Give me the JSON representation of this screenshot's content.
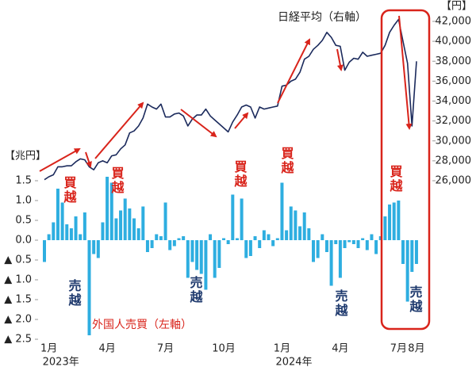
{
  "chart_data": {
    "type": "bar",
    "y_unit": "【兆円】",
    "y2_unit": "【円】",
    "categories": [
      null,
      "1月",
      null,
      null,
      null,
      null,
      null,
      null,
      null,
      null,
      null,
      null,
      null,
      null,
      "4月",
      null,
      null,
      null,
      null,
      null,
      null,
      null,
      null,
      null,
      null,
      null,
      null,
      "7月",
      null,
      null,
      null,
      null,
      null,
      null,
      null,
      null,
      null,
      null,
      null,
      null,
      "10月",
      null,
      null,
      null,
      null,
      null,
      null,
      null,
      null,
      null,
      null,
      null,
      null,
      "1月",
      null,
      null,
      null,
      null,
      null,
      null,
      null,
      null,
      null,
      null,
      null,
      null,
      "4月",
      null,
      null,
      null,
      null,
      null,
      null,
      null,
      null,
      null,
      null,
      null,
      null,
      "7月",
      null,
      null,
      null,
      "8月"
    ],
    "category_years": [
      null,
      "2023年",
      null,
      null,
      null,
      null,
      null,
      null,
      null,
      null,
      null,
      null,
      null,
      null,
      null,
      null,
      null,
      null,
      null,
      null,
      null,
      null,
      null,
      null,
      null,
      null,
      null,
      null,
      null,
      null,
      null,
      null,
      null,
      null,
      null,
      null,
      null,
      null,
      null,
      null,
      null,
      null,
      null,
      null,
      null,
      null,
      null,
      null,
      null,
      null,
      null,
      null,
      null,
      "2024年",
      null,
      null,
      null,
      null,
      null,
      null,
      null,
      null,
      null,
      null,
      null,
      null,
      null,
      null,
      null,
      null,
      null,
      null,
      null,
      null,
      null,
      null,
      null,
      null,
      null,
      null,
      null,
      null,
      null,
      null
    ],
    "series": [
      {
        "name": "外国人売買（左軸）",
        "type": "bar",
        "color": "#2eaee0",
        "values": [
          -0.55,
          0.15,
          0.45,
          1.3,
          0.95,
          0.4,
          0.3,
          0.6,
          0.15,
          0.7,
          -2.4,
          -0.35,
          -0.45,
          0.45,
          1.6,
          1.45,
          0.55,
          0.75,
          1.05,
          0.8,
          0.55,
          0.3,
          0.85,
          -0.3,
          -0.2,
          0.15,
          0.1,
          0.95,
          -0.25,
          -0.15,
          0.05,
          0.1,
          -0.95,
          -0.55,
          -0.75,
          -0.85,
          -1.25,
          0.15,
          -0.95,
          -0.7,
          0.05,
          -0.1,
          1.15,
          0.05,
          1.05,
          -0.45,
          -0.4,
          0.1,
          -0.2,
          0.25,
          0.15,
          -0.15,
          0.05,
          1.45,
          0.25,
          0.85,
          0.75,
          0.35,
          0.7,
          0.3,
          -0.55,
          -0.45,
          0.15,
          -0.3,
          -1.15,
          -0.1,
          -0.95,
          -0.2,
          -0.05,
          -0.1,
          -0.2,
          0.05,
          -0.25,
          0.15,
          -0.35,
          0.1,
          0.6,
          0.9,
          0.95,
          1.0,
          -0.6,
          -1.55,
          -0.8,
          -0.6
        ]
      },
      {
        "name": "日経平均（右軸）",
        "type": "line",
        "axis": "y2",
        "color": "#1b2a5c",
        "values": [
          26100,
          26400,
          26600,
          27400,
          27400,
          27500,
          27500,
          27900,
          28200,
          28100,
          27400,
          27100,
          27800,
          28000,
          27800,
          28500,
          28600,
          29200,
          29600,
          30800,
          31000,
          31500,
          32300,
          33700,
          33400,
          33200,
          33700,
          32400,
          32400,
          32700,
          32800,
          32500,
          31500,
          32200,
          32600,
          32600,
          33200,
          32500,
          32100,
          31700,
          31300,
          30900,
          31900,
          32600,
          33400,
          33600,
          33400,
          32300,
          33400,
          33200,
          33300,
          33400,
          33500,
          35500,
          35600,
          36000,
          36200,
          36900,
          38200,
          38500,
          39200,
          39600,
          40100,
          40900,
          40400,
          39600,
          39500,
          37100,
          37900,
          38300,
          38200,
          38900,
          38500,
          38600,
          38700,
          38800,
          39600,
          40900,
          41600,
          42200,
          40000,
          37800,
          31500,
          38000
        ]
      }
    ],
    "ylim": [
      -2.5,
      1.5
    ],
    "yticks": [
      1.5,
      {
        "value": 1,
        "label": "1.0"
      },
      0.5,
      {
        "value": 0,
        "label": "0.0"
      },
      {
        "value": -0.5,
        "label": "▲ 0.5"
      },
      {
        "value": -1,
        "label": "▲ 1.0"
      },
      {
        "value": -1.5,
        "label": "▲ 1.5"
      },
      {
        "value": -2,
        "label": "▲ 2.0"
      },
      {
        "value": -2.5,
        "label": "▲ 2.5"
      }
    ],
    "y2lim": [
      26000,
      42000
    ],
    "y2ticks": [
      {
        "value": 26000,
        "label": "26,000"
      },
      {
        "value": 28000,
        "label": "28,000"
      },
      {
        "value": 30000,
        "label": "30,000"
      },
      {
        "value": 32000,
        "label": "32,000"
      },
      {
        "value": 34000,
        "label": "34,000"
      },
      {
        "value": 36000,
        "label": "36,000"
      },
      {
        "value": 38000,
        "label": "38,000"
      },
      {
        "value": 40000,
        "label": "40,000"
      },
      {
        "value": 42000,
        "label": "42,000"
      }
    ],
    "buy_labels": [
      "買越",
      "買越",
      "買越",
      "買越",
      "買越"
    ],
    "sell_labels": [
      "売越",
      "売越",
      "売越",
      "売越"
    ]
  }
}
